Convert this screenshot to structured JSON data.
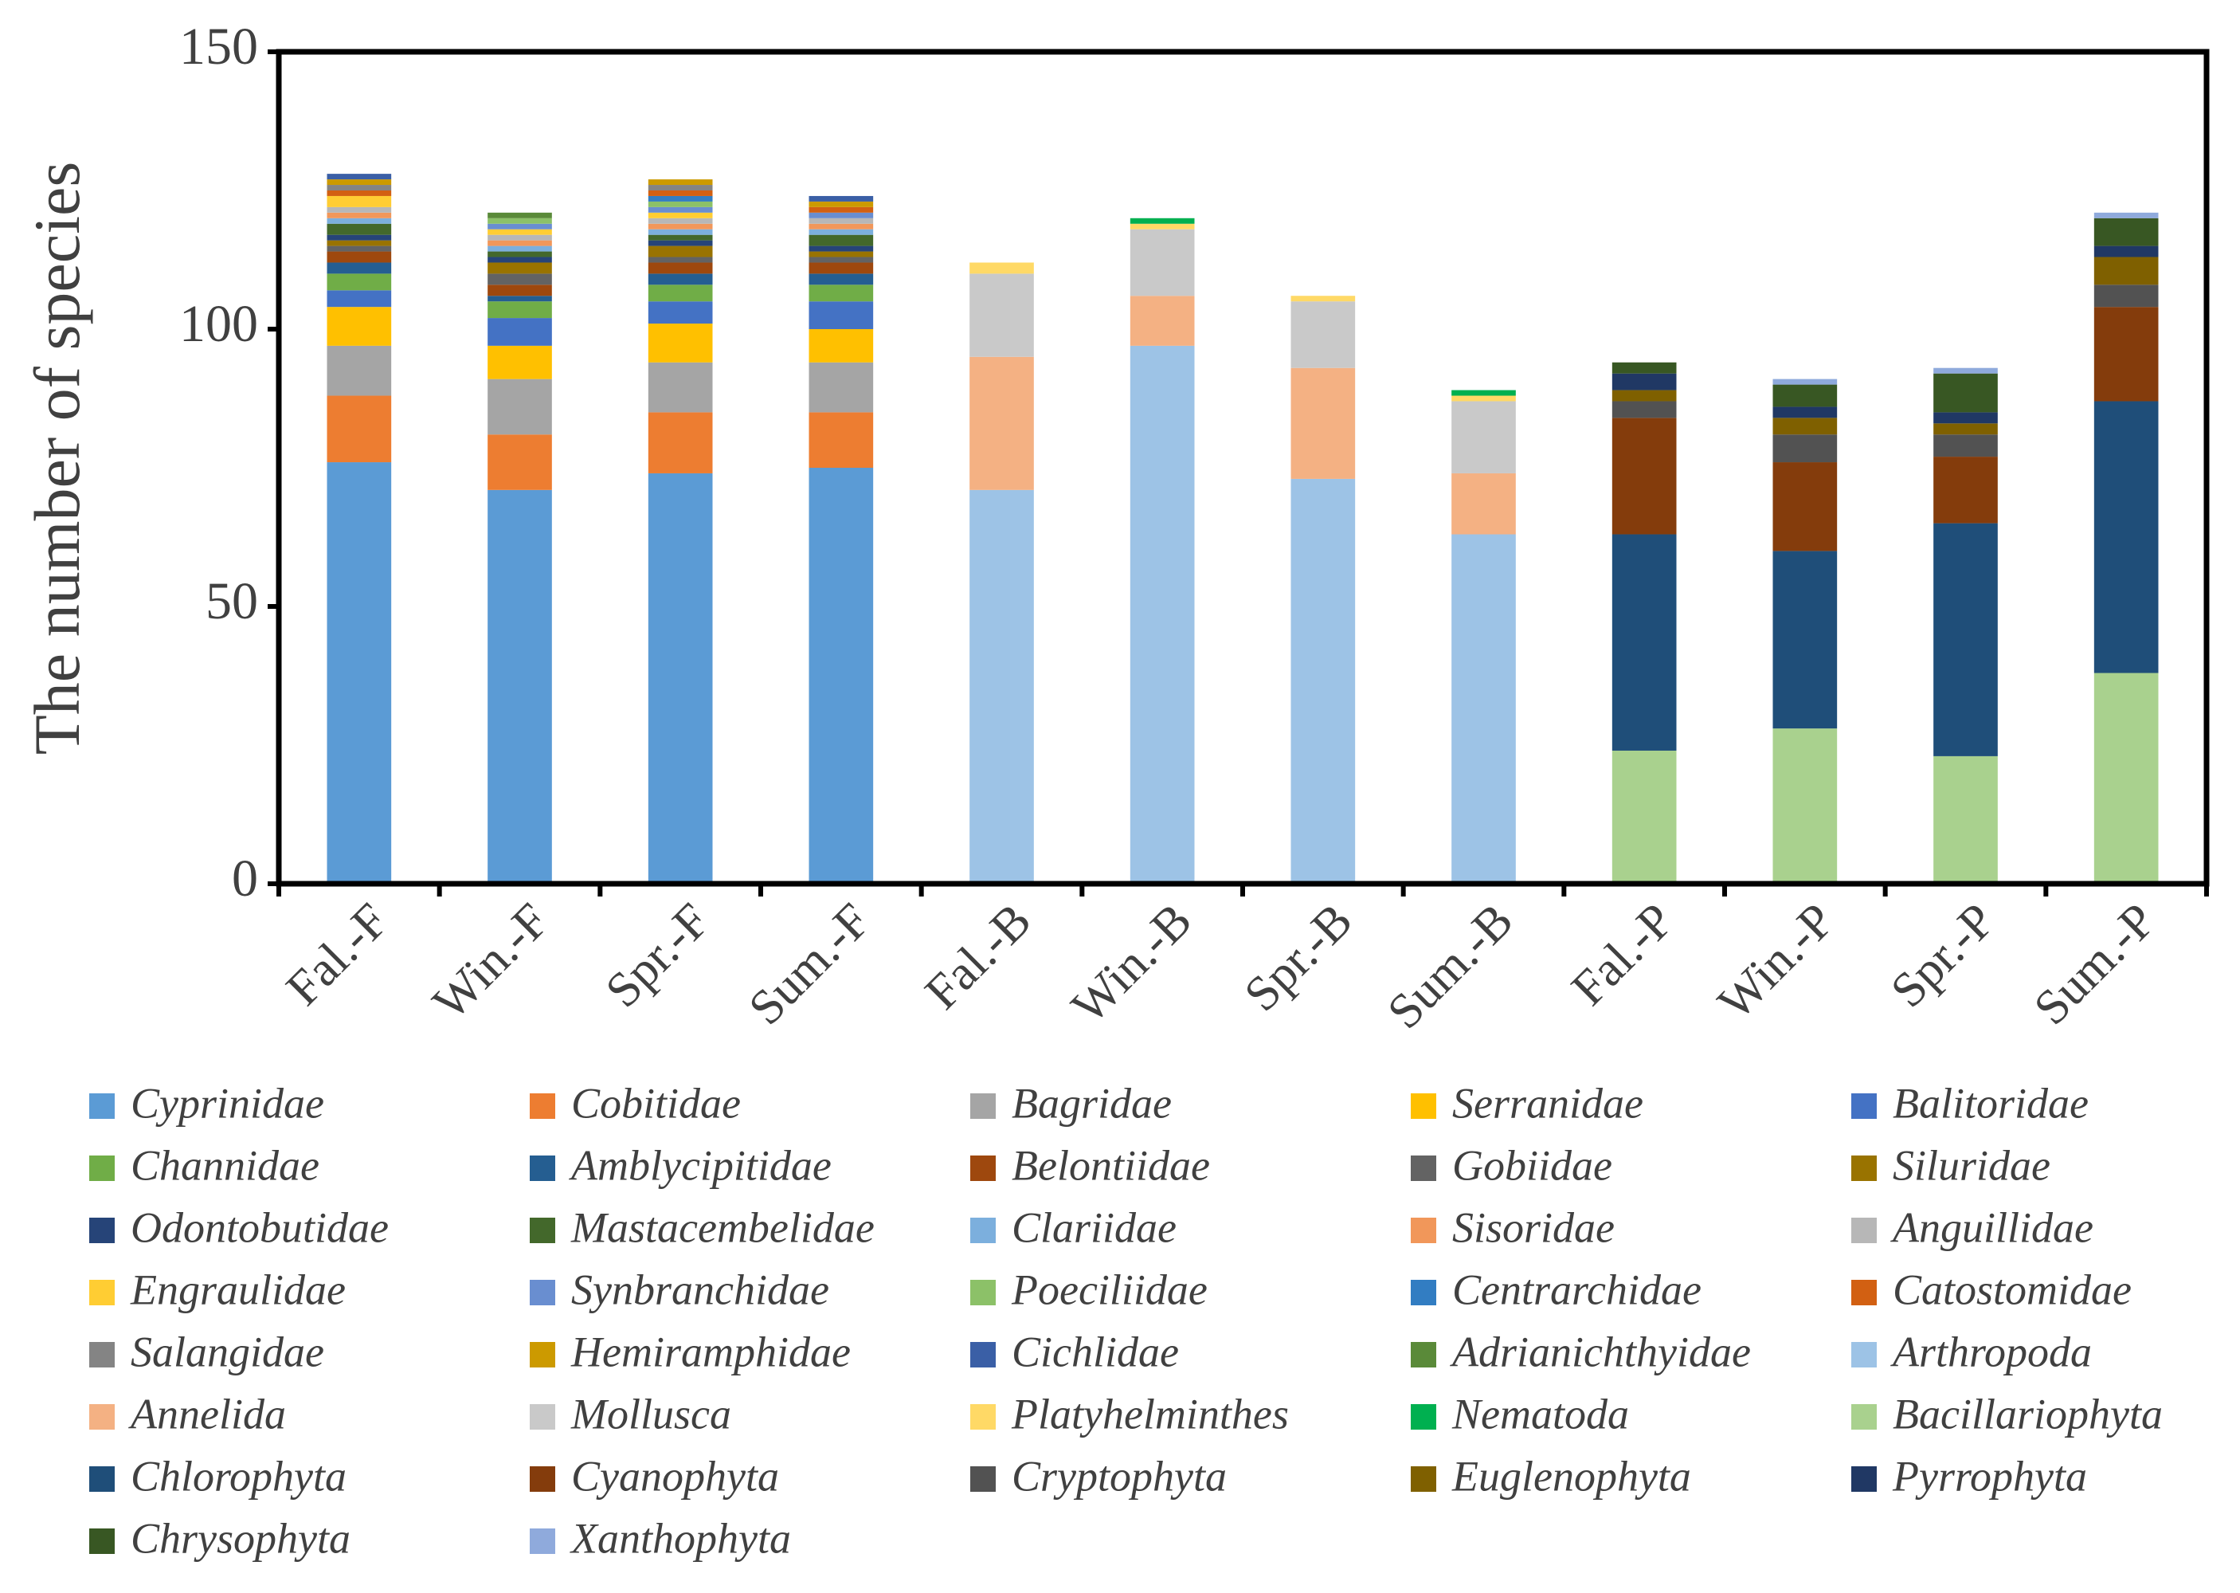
{
  "chart_data": {
    "type": "stacked_bar",
    "y_label": "The number of species",
    "categories": [
      "Fal.-F",
      "Win.-F",
      "Spr.-F",
      "Sum.-F",
      "Fal.-B",
      "Win.-B",
      "Spr.-B",
      "Sum.-B",
      "Fal.-P",
      "Win.-P",
      "Spr.-P",
      "Sum.-P"
    ],
    "ylim": [
      0,
      150
    ],
    "yticks": [
      0,
      50,
      100,
      150
    ],
    "series": [
      {
        "name": "Cyprinidae",
        "color": "#5b9bd5",
        "values": [
          76,
          71,
          74,
          75,
          0,
          0,
          0,
          0,
          0,
          0,
          0,
          0
        ]
      },
      {
        "name": "Cobitidae",
        "color": "#ed7d31",
        "values": [
          12,
          10,
          11,
          10,
          0,
          0,
          0,
          0,
          0,
          0,
          0,
          0
        ]
      },
      {
        "name": "Bagridae",
        "color": "#a5a5a5",
        "values": [
          9,
          10,
          9,
          9,
          0,
          0,
          0,
          0,
          0,
          0,
          0,
          0
        ]
      },
      {
        "name": "Serranidae",
        "color": "#ffc000",
        "values": [
          7,
          6,
          7,
          6,
          0,
          0,
          0,
          0,
          0,
          0,
          0,
          0
        ]
      },
      {
        "name": "Balitoridae",
        "color": "#4472c4",
        "values": [
          3,
          5,
          4,
          5,
          0,
          0,
          0,
          0,
          0,
          0,
          0,
          0
        ]
      },
      {
        "name": "Channidae",
        "color": "#70ad47",
        "values": [
          3,
          3,
          3,
          3,
          0,
          0,
          0,
          0,
          0,
          0,
          0,
          0
        ]
      },
      {
        "name": "Amblycipitidae",
        "color": "#255e91",
        "values": [
          2,
          1,
          2,
          2,
          0,
          0,
          0,
          0,
          0,
          0,
          0,
          0
        ]
      },
      {
        "name": "Belontiidae",
        "color": "#9e480e",
        "values": [
          2,
          2,
          2,
          2,
          0,
          0,
          0,
          0,
          0,
          0,
          0,
          0
        ]
      },
      {
        "name": "Gobiidae",
        "color": "#636363",
        "values": [
          1,
          2,
          1,
          1,
          0,
          0,
          0,
          0,
          0,
          0,
          0,
          0
        ]
      },
      {
        "name": "Siluridae",
        "color": "#997300",
        "values": [
          1,
          2,
          2,
          1,
          0,
          0,
          0,
          0,
          0,
          0,
          0,
          0
        ]
      },
      {
        "name": "Odontobutidae",
        "color": "#264478",
        "values": [
          1,
          1,
          1,
          1,
          0,
          0,
          0,
          0,
          0,
          0,
          0,
          0
        ]
      },
      {
        "name": "Mastacembelidae",
        "color": "#43682b",
        "values": [
          2,
          1,
          1,
          2,
          0,
          0,
          0,
          0,
          0,
          0,
          0,
          0
        ]
      },
      {
        "name": "Clariidae",
        "color": "#7cafdd",
        "values": [
          1,
          1,
          1,
          1,
          0,
          0,
          0,
          0,
          0,
          0,
          0,
          0
        ]
      },
      {
        "name": "Sisoridae",
        "color": "#f1975a",
        "values": [
          1,
          1,
          1,
          1,
          0,
          0,
          0,
          0,
          0,
          0,
          0,
          0
        ]
      },
      {
        "name": "Anguillidae",
        "color": "#b7b7b7",
        "values": [
          1,
          1,
          1,
          1,
          0,
          0,
          0,
          0,
          0,
          0,
          0,
          0
        ]
      },
      {
        "name": "Engraulidae",
        "color": "#ffcd33",
        "values": [
          2,
          1,
          1,
          0,
          0,
          0,
          0,
          0,
          0,
          0,
          0,
          0
        ]
      },
      {
        "name": "Synbranchidae",
        "color": "#698ed0",
        "values": [
          0,
          1,
          1,
          1,
          0,
          0,
          0,
          0,
          0,
          0,
          0,
          0
        ]
      },
      {
        "name": "Poeciliidae",
        "color": "#8cc168",
        "values": [
          0,
          1,
          1,
          0,
          0,
          0,
          0,
          0,
          0,
          0,
          0,
          0
        ]
      },
      {
        "name": "Centrarchidae",
        "color": "#327dc2",
        "values": [
          0,
          0,
          1,
          0,
          0,
          0,
          0,
          0,
          0,
          0,
          0,
          0
        ]
      },
      {
        "name": "Catostomidae",
        "color": "#d26012",
        "values": [
          1,
          0,
          1,
          1,
          0,
          0,
          0,
          0,
          0,
          0,
          0,
          0
        ]
      },
      {
        "name": "Salangidae",
        "color": "#848484",
        "values": [
          1,
          0,
          1,
          0,
          0,
          0,
          0,
          0,
          0,
          0,
          0,
          0
        ]
      },
      {
        "name": "Hemiramphidae",
        "color": "#cc9a00",
        "values": [
          1,
          0,
          1,
          1,
          0,
          0,
          0,
          0,
          0,
          0,
          0,
          0
        ]
      },
      {
        "name": "Cichlidae",
        "color": "#3a5fa6",
        "values": [
          1,
          0,
          0,
          1,
          0,
          0,
          0,
          0,
          0,
          0,
          0,
          0
        ]
      },
      {
        "name": "Adrianichthyidae",
        "color": "#5a8a39",
        "values": [
          0,
          1,
          0,
          0,
          0,
          0,
          0,
          0,
          0,
          0,
          0,
          0
        ]
      },
      {
        "name": "Arthropoda",
        "color": "#9dc3e6",
        "values": [
          0,
          0,
          0,
          0,
          71,
          97,
          73,
          63,
          0,
          0,
          0,
          0
        ]
      },
      {
        "name": "Annelida",
        "color": "#f4b183",
        "values": [
          0,
          0,
          0,
          0,
          24,
          9,
          20,
          11,
          0,
          0,
          0,
          0
        ]
      },
      {
        "name": "Mollusca",
        "color": "#c9c9c9",
        "values": [
          0,
          0,
          0,
          0,
          15,
          12,
          12,
          13,
          0,
          0,
          0,
          0
        ]
      },
      {
        "name": "Platyhelminthes",
        "color": "#ffd966",
        "values": [
          0,
          0,
          0,
          0,
          2,
          1,
          1,
          1,
          0,
          0,
          0,
          0
        ]
      },
      {
        "name": "Nematoda",
        "color": "#00b050",
        "values": [
          0,
          0,
          0,
          0,
          0,
          1,
          0,
          1,
          0,
          0,
          0,
          0
        ]
      },
      {
        "name": "Bacillariophyta",
        "color": "#a9d18e",
        "values": [
          0,
          0,
          0,
          0,
          0,
          0,
          0,
          0,
          24,
          28,
          23,
          38
        ]
      },
      {
        "name": "Chlorophyta",
        "color": "#1f4e79",
        "values": [
          0,
          0,
          0,
          0,
          0,
          0,
          0,
          0,
          39,
          32,
          42,
          49
        ]
      },
      {
        "name": "Cyanophyta",
        "color": "#843c0c",
        "values": [
          0,
          0,
          0,
          0,
          0,
          0,
          0,
          0,
          21,
          16,
          12,
          17
        ]
      },
      {
        "name": "Cryptophyta",
        "color": "#525252",
        "values": [
          0,
          0,
          0,
          0,
          0,
          0,
          0,
          0,
          3,
          5,
          4,
          4
        ]
      },
      {
        "name": "Euglenophyta",
        "color": "#7f6000",
        "values": [
          0,
          0,
          0,
          0,
          0,
          0,
          0,
          0,
          2,
          3,
          2,
          5
        ]
      },
      {
        "name": "Pyrrophyta",
        "color": "#203864",
        "values": [
          0,
          0,
          0,
          0,
          0,
          0,
          0,
          0,
          3,
          2,
          2,
          2
        ]
      },
      {
        "name": "Chrysophyta",
        "color": "#385723",
        "values": [
          0,
          0,
          0,
          0,
          0,
          0,
          0,
          0,
          2,
          4,
          7,
          5
        ]
      },
      {
        "name": "Xanthophyta",
        "color": "#8faadc",
        "values": [
          0,
          0,
          0,
          0,
          0,
          0,
          0,
          0,
          0,
          1,
          1,
          1
        ]
      }
    ]
  }
}
